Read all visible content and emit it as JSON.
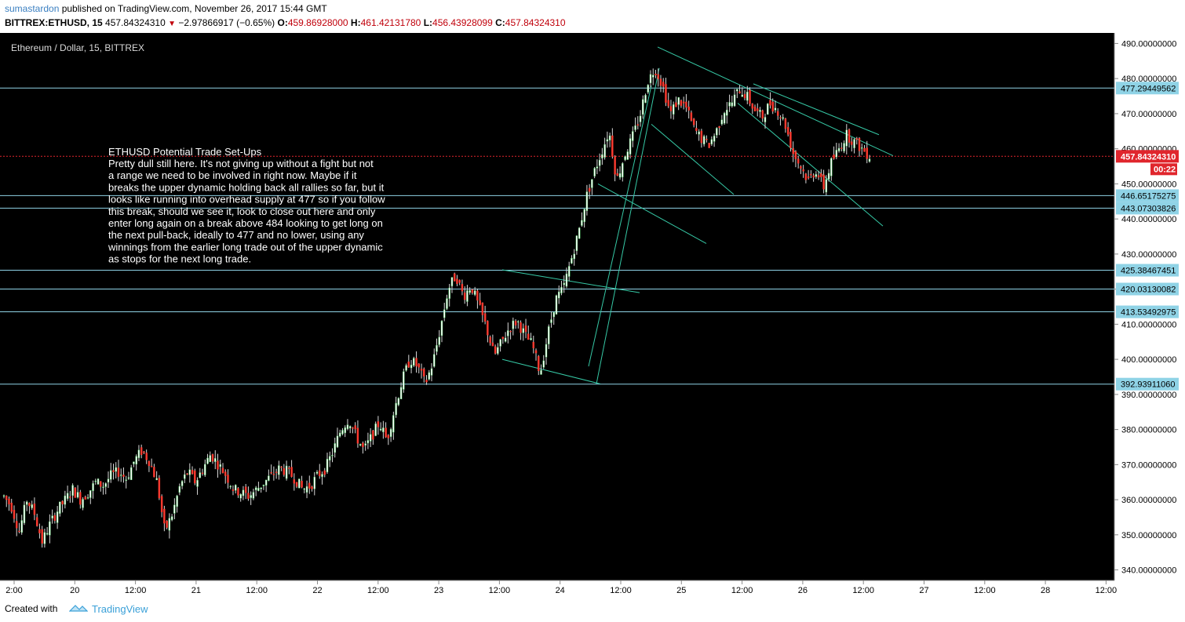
{
  "header": {
    "user": "sumastardon",
    "published": " published on TradingView.com, November 26, 2017 15:44 GMT",
    "symbol": "BITTREX:ETHUSD, 15",
    "last": "457.84324310",
    "arrow": "▼",
    "change": "−2.97866917 (−0.65%)",
    "o_label": "O:",
    "o_value": "459.86928000",
    "h_label": "H:",
    "h_value": "461.42131780",
    "l_label": "L:",
    "l_value": "456.43928099",
    "c_label": "C:",
    "c_value": "457.84324310"
  },
  "chart_data": {
    "type": "candlestick",
    "legend": "Ethereum / Dollar, 15, BITTREX",
    "annotation": {
      "title": "ETHUSD  Potential Trade Set-Ups",
      "lines": [
        "Pretty dull still here. It's not giving up without a fight but not",
        "a range we need to be involved in right now. Maybe if it",
        "breaks the upper dynamic holding back all rallies so far, but it",
        "looks like running into overhead supply at 477 so if you follow",
        "this break, should we see it, look to close out here and only",
        "enter long again on a break  above 484 looking to get long on",
        "the next pull-back, ideally to 477 and no lower, using any",
        "winnings from the earlier long trade out of the upper dynamic",
        "as stops for the next long trade."
      ]
    },
    "y_ticks": [
      "490.00000000",
      "480.00000000",
      "470.00000000",
      "460.00000000",
      "450.00000000",
      "440.00000000",
      "430.00000000",
      "420.00000000",
      "410.00000000",
      "400.00000000",
      "390.00000000",
      "380.00000000",
      "370.00000000",
      "360.00000000",
      "350.00000000",
      "340.00000000"
    ],
    "ylim": [
      337,
      493
    ],
    "x_ticks": [
      "2:00",
      "20",
      "12:00",
      "21",
      "12:00",
      "22",
      "12:00",
      "23",
      "12:00",
      "24",
      "12:00",
      "25",
      "12:00",
      "26",
      "12:00",
      "27",
      "12:00",
      "28",
      "12:00"
    ],
    "levels": [
      {
        "value": 477.29449562,
        "label": "477.29449562"
      },
      {
        "value": 446.65175275,
        "label": "446.65175275"
      },
      {
        "value": 443.07303826,
        "label": "443.07303826"
      },
      {
        "value": 425.38467451,
        "label": "425.38467451"
      },
      {
        "value": 420.03130082,
        "label": "420.03130082"
      },
      {
        "value": 413.53492975,
        "label": "413.53492975"
      },
      {
        "value": 392.9391106,
        "label": "392.93911060"
      }
    ],
    "last_price": {
      "value": 457.8432431,
      "label": "457.84324310",
      "countdown": "00:22"
    },
    "price_path": [
      [
        0,
        361
      ],
      [
        3,
        358
      ],
      [
        6,
        351
      ],
      [
        9,
        360
      ],
      [
        12,
        356
      ],
      [
        15,
        348
      ],
      [
        18,
        353
      ],
      [
        21,
        357
      ],
      [
        24,
        360
      ],
      [
        27,
        363
      ],
      [
        30,
        360
      ],
      [
        33,
        362
      ],
      [
        36,
        365
      ],
      [
        39,
        364
      ],
      [
        42,
        367
      ],
      [
        45,
        368
      ],
      [
        48,
        366
      ],
      [
        51,
        371
      ],
      [
        54,
        374
      ],
      [
        57,
        371
      ],
      [
        60,
        365
      ],
      [
        63,
        351
      ],
      [
        66,
        356
      ],
      [
        69,
        364
      ],
      [
        72,
        368
      ],
      [
        75,
        365
      ],
      [
        78,
        369
      ],
      [
        81,
        373
      ],
      [
        84,
        370
      ],
      [
        87,
        367
      ],
      [
        90,
        363
      ],
      [
        93,
        362
      ],
      [
        96,
        361
      ],
      [
        99,
        363
      ],
      [
        102,
        365
      ],
      [
        105,
        367
      ],
      [
        108,
        369
      ],
      [
        111,
        368
      ],
      [
        114,
        366
      ],
      [
        117,
        363
      ],
      [
        120,
        364
      ],
      [
        123,
        367
      ],
      [
        126,
        369
      ],
      [
        129,
        374
      ],
      [
        132,
        380
      ],
      [
        135,
        383
      ],
      [
        138,
        378
      ],
      [
        141,
        374
      ],
      [
        144,
        378
      ],
      [
        147,
        382
      ],
      [
        150,
        377
      ],
      [
        153,
        386
      ],
      [
        156,
        394
      ],
      [
        159,
        400
      ],
      [
        162,
        398
      ],
      [
        165,
        393
      ],
      [
        168,
        399
      ],
      [
        171,
        409
      ],
      [
        174,
        420
      ],
      [
        177,
        424
      ],
      [
        180,
        418
      ],
      [
        183,
        421
      ],
      [
        186,
        415
      ],
      [
        189,
        409
      ],
      [
        192,
        401
      ],
      [
        195,
        405
      ],
      [
        198,
        409
      ],
      [
        201,
        411
      ],
      [
        204,
        407
      ],
      [
        207,
        404
      ],
      [
        210,
        396
      ],
      [
        213,
        407
      ],
      [
        216,
        417
      ],
      [
        219,
        420
      ],
      [
        222,
        428
      ],
      [
        225,
        436
      ],
      [
        228,
        446
      ],
      [
        231,
        453
      ],
      [
        234,
        459
      ],
      [
        237,
        465
      ],
      [
        240,
        451
      ],
      [
        243,
        458
      ],
      [
        246,
        463
      ],
      [
        249,
        469
      ],
      [
        252,
        479
      ],
      [
        255,
        483
      ],
      [
        258,
        478
      ],
      [
        261,
        470
      ],
      [
        264,
        474
      ],
      [
        267,
        472
      ],
      [
        270,
        466
      ],
      [
        273,
        463
      ],
      [
        276,
        461
      ],
      [
        279,
        465
      ],
      [
        282,
        471
      ],
      [
        285,
        473
      ],
      [
        288,
        477
      ],
      [
        291,
        475
      ],
      [
        294,
        471
      ],
      [
        297,
        469
      ],
      [
        300,
        473
      ],
      [
        303,
        471
      ],
      [
        306,
        467
      ],
      [
        309,
        459
      ],
      [
        312,
        455
      ],
      [
        315,
        451
      ],
      [
        318,
        454
      ],
      [
        321,
        449
      ],
      [
        324,
        456
      ],
      [
        327,
        460
      ],
      [
        330,
        464
      ],
      [
        333,
        462
      ],
      [
        336,
        460
      ],
      [
        339,
        458
      ]
    ]
  },
  "footer": {
    "created": "Created with",
    "brand": "TradingView"
  }
}
